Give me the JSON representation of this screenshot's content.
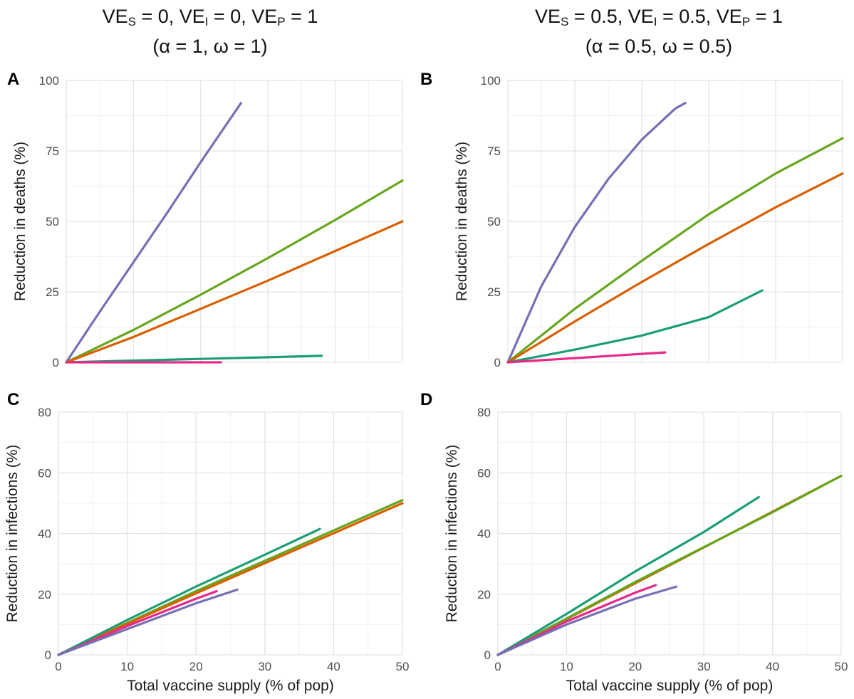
{
  "column_titles": [
    {
      "line1": {
        "parts": [
          "VE",
          "S",
          " = 0, VE",
          "I",
          " = 0, VE",
          "P",
          " = 1"
        ]
      },
      "line2": "(α = 1, ω = 1)"
    },
    {
      "line1": {
        "parts": [
          "VE",
          "S",
          " = 0.5, VE",
          "I",
          " = 0.5, VE",
          "P",
          " = 1"
        ]
      },
      "line2": "(α = 0.5, ω = 0.5)"
    }
  ],
  "colors": {
    "purple": "#7570b3",
    "green": "#66a61e",
    "orange": "#d95f02",
    "teal": "#1b9e77",
    "pink": "#e7298a",
    "grid_major": "#e4e4e4",
    "grid_minor": "#f1f1f1"
  },
  "chart_data": [
    {
      "panel": "A",
      "type": "line",
      "xlabel": "",
      "ylabel": "Reduction in deaths (%)",
      "xlim": [
        0,
        50
      ],
      "ylim": [
        0,
        100
      ],
      "x_ticks": [
        "0",
        "10",
        "20",
        "30",
        "40",
        "50"
      ],
      "show_x_ticks": false,
      "y_ticks": [
        "0",
        "25",
        "50",
        "75",
        "100"
      ],
      "series": [
        {
          "color": "purple",
          "x": [
            0,
            5,
            10,
            15,
            20,
            25,
            26
          ],
          "y": [
            0,
            18,
            35.5,
            53,
            71,
            88.5,
            92
          ]
        },
        {
          "color": "green",
          "x": [
            0,
            10,
            20,
            30,
            40,
            50
          ],
          "y": [
            0,
            11.5,
            24,
            37,
            50.5,
            64.5
          ]
        },
        {
          "color": "orange",
          "x": [
            0,
            10,
            20,
            30,
            40,
            50
          ],
          "y": [
            0,
            9,
            19,
            29,
            39.5,
            50
          ]
        },
        {
          "color": "teal",
          "x": [
            0,
            10,
            20,
            30,
            38
          ],
          "y": [
            0,
            0.6,
            1.2,
            1.8,
            2.3
          ]
        },
        {
          "color": "pink",
          "x": [
            0,
            23
          ],
          "y": [
            0,
            0
          ]
        }
      ]
    },
    {
      "panel": "B",
      "type": "line",
      "xlabel": "",
      "ylabel": "Reduction in deaths (%)",
      "xlim": [
        0,
        50
      ],
      "ylim": [
        0,
        100
      ],
      "x_ticks": [
        "0",
        "10",
        "20",
        "30",
        "40",
        "50"
      ],
      "show_x_ticks": false,
      "y_ticks": [
        "0",
        "25",
        "50",
        "75",
        "100"
      ],
      "series": [
        {
          "color": "purple",
          "x": [
            0,
            5,
            10,
            15,
            20,
            25,
            26.5
          ],
          "y": [
            0,
            27,
            48,
            65,
            79,
            90,
            92
          ]
        },
        {
          "color": "green",
          "x": [
            0,
            10,
            20,
            30,
            40,
            50
          ],
          "y": [
            0,
            19,
            36,
            52.5,
            67,
            79.5
          ]
        },
        {
          "color": "orange",
          "x": [
            0,
            10,
            20,
            30,
            40,
            50
          ],
          "y": [
            0,
            14.5,
            28.5,
            42,
            55,
            67
          ]
        },
        {
          "color": "teal",
          "x": [
            0,
            10,
            20,
            30,
            38
          ],
          "y": [
            0,
            4.5,
            9.5,
            16,
            25.5
          ]
        },
        {
          "color": "pink",
          "x": [
            0,
            10,
            20,
            23.5
          ],
          "y": [
            0,
            1.5,
            3,
            3.5
          ]
        }
      ]
    },
    {
      "panel": "C",
      "type": "line",
      "xlabel": "Total vaccine supply (% of pop)",
      "ylabel": "Reduction in infections (%)",
      "xlim": [
        0,
        50
      ],
      "ylim": [
        0,
        80
      ],
      "x_ticks": [
        "0",
        "10",
        "20",
        "30",
        "40",
        "50"
      ],
      "show_x_ticks": true,
      "y_ticks": [
        "0",
        "20",
        "40",
        "60",
        "80"
      ],
      "series": [
        {
          "color": "green",
          "x": [
            0,
            10,
            20,
            30,
            40,
            50
          ],
          "y": [
            0,
            10.5,
            21,
            31,
            41,
            51
          ]
        },
        {
          "color": "orange",
          "x": [
            0,
            10,
            20,
            30,
            40,
            50
          ],
          "y": [
            0,
            10.2,
            20.3,
            30.2,
            40.1,
            50
          ]
        },
        {
          "color": "teal",
          "x": [
            0,
            10,
            20,
            30,
            38
          ],
          "y": [
            0,
            11.5,
            22.5,
            33,
            41.5
          ]
        },
        {
          "color": "pink",
          "x": [
            0,
            10,
            20,
            23
          ],
          "y": [
            0,
            9.5,
            18.5,
            21
          ]
        },
        {
          "color": "purple",
          "x": [
            0,
            10,
            20,
            26
          ],
          "y": [
            0,
            8.5,
            17,
            21.5
          ]
        }
      ]
    },
    {
      "panel": "D",
      "type": "line",
      "xlabel": "Total vaccine supply (% of pop)",
      "ylabel": "Reduction in infections (%)",
      "xlim": [
        0,
        50
      ],
      "ylim": [
        0,
        80
      ],
      "x_ticks": [
        "0",
        "10",
        "20",
        "30",
        "40",
        "50"
      ],
      "show_x_ticks": true,
      "y_ticks": [
        "0",
        "20",
        "40",
        "60",
        "80"
      ],
      "series": [
        {
          "color": "orange",
          "x": [
            0,
            10,
            20,
            30,
            40,
            50
          ],
          "y": [
            0,
            11.8,
            23.6,
            35.4,
            47.2,
            59
          ]
        },
        {
          "color": "green",
          "x": [
            0,
            10,
            20,
            30,
            40,
            50
          ],
          "y": [
            0,
            12,
            24,
            35.5,
            47,
            59
          ]
        },
        {
          "color": "teal",
          "x": [
            0,
            10,
            20,
            30,
            38
          ],
          "y": [
            0,
            13.5,
            27.5,
            40.5,
            52
          ]
        },
        {
          "color": "pink",
          "x": [
            0,
            10,
            20,
            23
          ],
          "y": [
            0,
            11,
            20.5,
            23
          ]
        },
        {
          "color": "purple",
          "x": [
            0,
            10,
            20,
            26
          ],
          "y": [
            0,
            10,
            18.5,
            22.5
          ]
        }
      ]
    }
  ]
}
